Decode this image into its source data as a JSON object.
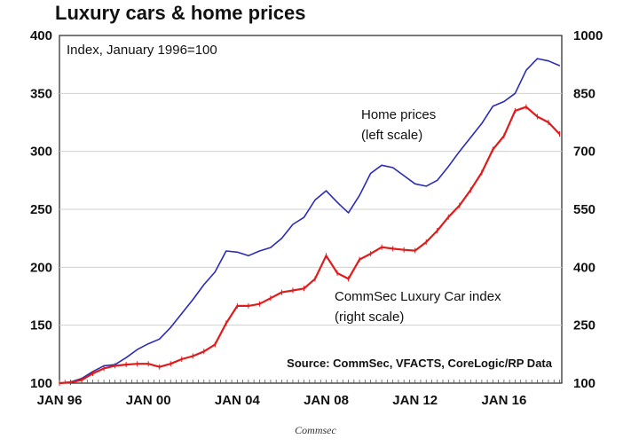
{
  "chart_data": {
    "type": "line",
    "title": "Luxury cars & home prices",
    "subtitle": "Index, January 1996=100",
    "source": "Source: CommSec, VFACTS, CoreLogic/RP Data",
    "x_ticks": [
      "JAN 96",
      "JAN 00",
      "JAN 04",
      "JAN 08",
      "JAN 12",
      "JAN 16"
    ],
    "xlim": [
      1996.0,
      2018.6
    ],
    "y_left": {
      "lim": [
        100,
        400
      ],
      "ticks": [
        "100",
        "150",
        "200",
        "250",
        "300",
        "350",
        "400"
      ]
    },
    "y_right": {
      "lim": [
        100,
        1000
      ],
      "ticks": [
        "100",
        "250",
        "400",
        "550",
        "700",
        "850",
        "1000"
      ]
    },
    "grid": true,
    "series": [
      {
        "name": "Home prices",
        "label_lines": [
          "Home prices",
          "(left scale)"
        ],
        "axis": "left",
        "color": "#2b2bb3",
        "x": [
          1996.0,
          1996.5,
          1997.0,
          1997.5,
          1998.0,
          1998.5,
          1999.0,
          1999.5,
          2000.0,
          2000.5,
          2001.0,
          2001.5,
          2002.0,
          2002.5,
          2003.0,
          2003.5,
          2004.0,
          2004.5,
          2005.0,
          2005.5,
          2006.0,
          2006.5,
          2007.0,
          2007.5,
          2008.0,
          2008.5,
          2009.0,
          2009.5,
          2010.0,
          2010.5,
          2011.0,
          2011.5,
          2012.0,
          2012.5,
          2013.0,
          2013.5,
          2014.0,
          2014.5,
          2015.0,
          2015.5,
          2016.0,
          2016.5,
          2017.0,
          2017.5,
          2018.0,
          2018.5
        ],
        "values": [
          100,
          101,
          104,
          110,
          115,
          116,
          122,
          129,
          134,
          138,
          148,
          160,
          172,
          185,
          196,
          214,
          213,
          210,
          214,
          217,
          225,
          237,
          243,
          258,
          266,
          256,
          247,
          262,
          281,
          288,
          286,
          279,
          272,
          270,
          275,
          287,
          300,
          312,
          324,
          339,
          343,
          350,
          370,
          380,
          378,
          374
        ]
      },
      {
        "name": "CommSec Luxury Car index",
        "label_lines": [
          "CommSec Luxury Car index",
          "(right scale)"
        ],
        "axis": "right",
        "color": "#e01b1b",
        "x": [
          1996.0,
          1996.5,
          1997.0,
          1997.5,
          1998.0,
          1998.5,
          1999.0,
          1999.5,
          2000.0,
          2000.5,
          2001.0,
          2001.5,
          2002.0,
          2002.5,
          2003.0,
          2003.5,
          2004.0,
          2004.5,
          2005.0,
          2005.5,
          2006.0,
          2006.5,
          2007.0,
          2007.5,
          2008.0,
          2008.5,
          2009.0,
          2009.5,
          2010.0,
          2010.5,
          2011.0,
          2011.5,
          2012.0,
          2012.5,
          2013.0,
          2013.5,
          2014.0,
          2014.5,
          2015.0,
          2015.5,
          2016.0,
          2016.5,
          2017.0,
          2017.5,
          2018.0,
          2018.5
        ],
        "values": [
          100,
          102,
          108,
          125,
          138,
          145,
          148,
          150,
          150,
          142,
          150,
          162,
          170,
          182,
          200,
          255,
          300,
          300,
          305,
          320,
          335,
          340,
          345,
          370,
          430,
          385,
          370,
          420,
          435,
          452,
          448,
          445,
          443,
          465,
          495,
          530,
          560,
          600,
          645,
          705,
          740,
          805,
          815,
          790,
          775,
          745
        ]
      }
    ]
  },
  "credit": "Commsec"
}
